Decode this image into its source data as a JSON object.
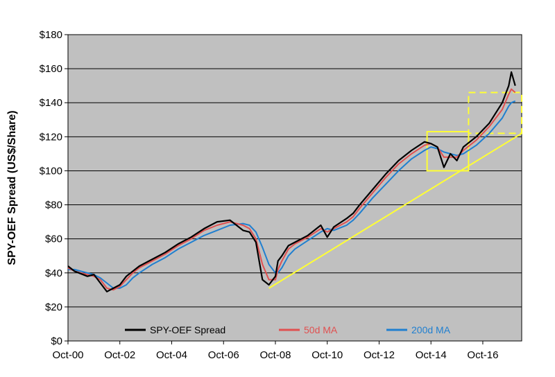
{
  "chart_data": {
    "type": "line",
    "ylabel": "SPY-OEF Spread (US$/Share)",
    "ylim": [
      0,
      180
    ],
    "y_ticks": [
      "$0",
      "$20",
      "$40",
      "$60",
      "$80",
      "$100",
      "$120",
      "$140",
      "$160",
      "$180"
    ],
    "x_ticks": [
      "Oct-00",
      "Oct-02",
      "Oct-04",
      "Oct-06",
      "Oct-08",
      "Oct-10",
      "Oct-12",
      "Oct-14",
      "Oct-16"
    ],
    "xlim": [
      2000.75,
      2018.25
    ],
    "grid": true,
    "legend_position": "bottom",
    "series": [
      {
        "name": "SPY-OEF Spread",
        "color": "#000000",
        "x": [
          2000.75,
          2001.0,
          2001.5,
          2001.75,
          2002.0,
          2002.25,
          2002.5,
          2002.75,
          2003.0,
          2003.25,
          2003.5,
          2004.0,
          2004.5,
          2005.0,
          2005.5,
          2006.0,
          2006.5,
          2007.0,
          2007.5,
          2007.75,
          2008.0,
          2008.25,
          2008.5,
          2008.75,
          2008.85,
          2009.0,
          2009.25,
          2009.5,
          2010.0,
          2010.5,
          2010.75,
          2011.0,
          2011.5,
          2011.75,
          2012.0,
          2012.5,
          2013.0,
          2013.5,
          2014.0,
          2014.5,
          2014.75,
          2015.0,
          2015.25,
          2015.5,
          2015.75,
          2016.0,
          2016.5,
          2017.0,
          2017.5,
          2017.75,
          2017.85,
          2018.0
        ],
        "values": [
          44,
          41,
          38,
          39,
          34,
          29,
          31,
          33,
          38,
          41,
          44,
          48,
          52,
          57,
          61,
          66,
          70,
          71,
          65,
          64,
          58,
          36,
          33,
          38,
          47,
          50,
          56,
          58,
          62,
          68,
          61,
          67,
          72,
          75,
          80,
          89,
          98,
          106,
          112,
          117,
          116,
          114,
          102,
          110,
          106,
          114,
          120,
          128,
          140,
          150,
          158,
          150
        ]
      },
      {
        "name": "50d MA",
        "color": "#e05050",
        "x": [
          2000.75,
          2001.0,
          2001.5,
          2001.75,
          2002.0,
          2002.25,
          2002.5,
          2002.75,
          2003.0,
          2003.25,
          2003.5,
          2004.0,
          2004.5,
          2005.0,
          2005.5,
          2006.0,
          2006.5,
          2007.0,
          2007.5,
          2007.75,
          2008.0,
          2008.25,
          2008.5,
          2008.75,
          2008.85,
          2009.0,
          2009.25,
          2009.5,
          2010.0,
          2010.5,
          2010.75,
          2011.0,
          2011.5,
          2011.75,
          2012.0,
          2012.5,
          2013.0,
          2013.5,
          2014.0,
          2014.5,
          2014.75,
          2015.0,
          2015.25,
          2015.5,
          2015.75,
          2016.0,
          2016.5,
          2017.0,
          2017.5,
          2017.75,
          2017.85,
          2018.0
        ],
        "values": [
          43,
          41,
          39,
          38,
          36,
          31,
          30,
          32,
          36,
          40,
          43,
          47,
          51,
          56,
          60,
          65,
          68,
          70,
          68,
          66,
          60,
          45,
          36,
          36,
          42,
          47,
          54,
          57,
          61,
          66,
          64,
          66,
          70,
          73,
          78,
          87,
          96,
          104,
          110,
          115,
          116,
          114,
          108,
          108,
          108,
          112,
          118,
          126,
          136,
          145,
          148,
          146
        ]
      },
      {
        "name": "200d MA",
        "color": "#1f7fd0",
        "x": [
          2000.75,
          2001.0,
          2001.5,
          2001.75,
          2002.0,
          2002.25,
          2002.5,
          2002.75,
          2003.0,
          2003.25,
          2003.5,
          2004.0,
          2004.5,
          2005.0,
          2005.5,
          2006.0,
          2006.5,
          2007.0,
          2007.5,
          2007.75,
          2008.0,
          2008.25,
          2008.5,
          2008.75,
          2008.85,
          2009.0,
          2009.25,
          2009.5,
          2010.0,
          2010.5,
          2010.75,
          2011.0,
          2011.5,
          2011.75,
          2012.0,
          2012.5,
          2013.0,
          2013.5,
          2014.0,
          2014.5,
          2014.75,
          2015.0,
          2015.25,
          2015.5,
          2015.75,
          2016.0,
          2016.5,
          2017.0,
          2017.5,
          2017.75,
          2017.85,
          2018.0
        ],
        "values": [
          42,
          42,
          40,
          39,
          37,
          34,
          31,
          31,
          33,
          37,
          40,
          45,
          49,
          54,
          58,
          62,
          65,
          68,
          69,
          68,
          64,
          55,
          45,
          40,
          40,
          43,
          50,
          54,
          59,
          64,
          66,
          65,
          68,
          71,
          75,
          84,
          92,
          100,
          107,
          112,
          114,
          113,
          111,
          110,
          109,
          110,
          115,
          122,
          131,
          138,
          140,
          141
        ]
      }
    ],
    "annotations": {
      "trendline": {
        "color": "#ffff33",
        "x": [
          2008.5,
          2018.25
        ],
        "values": [
          31,
          122
        ]
      },
      "boxes": [
        {
          "color": "#ffff33",
          "style": "solid",
          "x": [
            2014.6,
            2016.2
          ],
          "values": [
            100,
            123
          ]
        },
        {
          "color": "#ffff33",
          "style": "dashed",
          "x": [
            2016.2,
            2018.25
          ],
          "values": [
            122,
            146
          ]
        }
      ]
    },
    "colors": {
      "plot_background": "#c0c0c0",
      "gridline": "#000000"
    }
  }
}
